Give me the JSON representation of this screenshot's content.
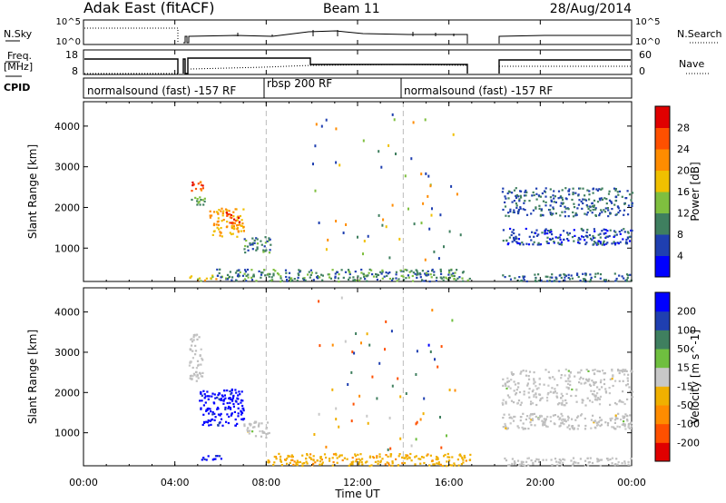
{
  "header": {
    "station": "Adak East (fitACF)",
    "beam": "Beam 11",
    "date": "28/Aug/2014"
  },
  "noise_panel": {
    "left_label": "N.Sky",
    "right_label": "N.Search",
    "left_ticks": [
      "10^5",
      "10^0"
    ],
    "right_ticks": [
      "10^5",
      "10^0"
    ]
  },
  "freq_panel": {
    "left_label_1": "Freq.",
    "left_label_2": "[MHz]",
    "right_label": "Nave",
    "left_ticks": [
      "18",
      "8"
    ],
    "right_ticks": [
      "60",
      "0"
    ]
  },
  "cpid_panel": {
    "label": "CPID",
    "programs": [
      {
        "name": "normalsound (fast) -157 RF",
        "start_hour": 0
      },
      {
        "name": "rbsp 200 RF",
        "start_hour": 8
      },
      {
        "name": "normalsound (fast) -157 RF",
        "start_hour": 14
      }
    ]
  },
  "colors": {
    "scale": [
      "#0000ff",
      "#1f3fb0",
      "#3f7f5f",
      "#7fbf3f",
      "#f0c000",
      "#ff8c00",
      "#ff5000",
      "#e00000"
    ],
    "velocity_scale": [
      "#0000ff",
      "#1f3fb0",
      "#3f7f5f",
      "#6fbf3f",
      "#c8c8c8",
      "#f0b000",
      "#ff8c00",
      "#ff5000",
      "#e00000"
    ],
    "ground_scatter": "#bebebe"
  },
  "chart_data": [
    {
      "type": "heatmap",
      "name": "power",
      "ylabel": "Slant Range [km]",
      "ylim": [
        180,
        4600
      ],
      "yticks": [
        1000,
        2000,
        3000,
        4000
      ],
      "xlim": [
        0,
        24
      ],
      "colorbar": {
        "label": "Power [dB]",
        "ticks": [
          "4",
          "8",
          "12",
          "16",
          "20",
          "24",
          "28"
        ],
        "range": [
          0,
          32
        ]
      },
      "echo_regions": [
        {
          "hours": [
            4.6,
            5.2
          ],
          "range_km": [
            2400,
            2700
          ],
          "value_db": 26
        },
        {
          "hours": [
            4.7,
            5.3
          ],
          "range_km": [
            2000,
            2300
          ],
          "value_db": 12
        },
        {
          "hours": [
            5.5,
            7.0
          ],
          "range_km": [
            1300,
            2000
          ],
          "value_db": 20
        },
        {
          "hours": [
            6.2,
            6.8
          ],
          "range_km": [
            1600,
            1900
          ],
          "value_db": 28
        },
        {
          "hours": [
            7.0,
            8.2
          ],
          "range_km": [
            900,
            1300
          ],
          "value_db": 10
        },
        {
          "hours": [
            4.6,
            5.8
          ],
          "range_km": [
            200,
            350
          ],
          "value_db": 18
        },
        {
          "hours": [
            5.8,
            16.9
          ],
          "range_km": [
            200,
            500
          ],
          "value_db": 10
        },
        {
          "hours": [
            18.3,
            24.0
          ],
          "range_km": [
            1800,
            2500
          ],
          "value_db": 8
        },
        {
          "hours": [
            18.3,
            24.0
          ],
          "range_km": [
            1100,
            1500
          ],
          "value_db": 6
        },
        {
          "hours": [
            18.3,
            24.0
          ],
          "range_km": [
            200,
            400
          ],
          "value_db": 8
        }
      ]
    },
    {
      "type": "heatmap",
      "name": "velocity",
      "ylabel": "Slant Range [km]",
      "xlabel": "Time UT",
      "ylim": [
        180,
        4600
      ],
      "yticks": [
        1000,
        2000,
        3000,
        4000
      ],
      "xlim": [
        0,
        24
      ],
      "xticks": [
        "00:00",
        "04:00",
        "08:00",
        "12:00",
        "16:00",
        "20:00",
        "00:00"
      ],
      "colorbar": {
        "label": "Velocity [m s^-1]",
        "ticks": [
          "200",
          "100",
          "50",
          "15",
          "-15",
          "-50",
          "-100",
          "-200"
        ],
        "range": [
          -250,
          250
        ]
      },
      "echo_regions": [
        {
          "hours": [
            4.6,
            5.2
          ],
          "range_km": [
            2300,
            3500
          ],
          "value_ms": 0
        },
        {
          "hours": [
            5.0,
            7.0
          ],
          "range_km": [
            1200,
            2100
          ],
          "value_ms": 220
        },
        {
          "hours": [
            7.0,
            8.2
          ],
          "range_km": [
            900,
            1300
          ],
          "value_ms": 0
        },
        {
          "hours": [
            5.0,
            6.0
          ],
          "range_km": [
            350,
            450
          ],
          "value_ms": 220
        },
        {
          "hours": [
            8.0,
            16.9
          ],
          "range_km": [
            200,
            500
          ],
          "value_ms": -60
        },
        {
          "hours": [
            18.3,
            24.0
          ],
          "range_km": [
            1700,
            2600
          ],
          "value_ms": 0
        },
        {
          "hours": [
            18.3,
            24.0
          ],
          "range_km": [
            1100,
            1500
          ],
          "value_ms": 0
        },
        {
          "hours": [
            18.3,
            24.0
          ],
          "range_km": [
            200,
            400
          ],
          "value_ms": 0
        }
      ]
    }
  ]
}
